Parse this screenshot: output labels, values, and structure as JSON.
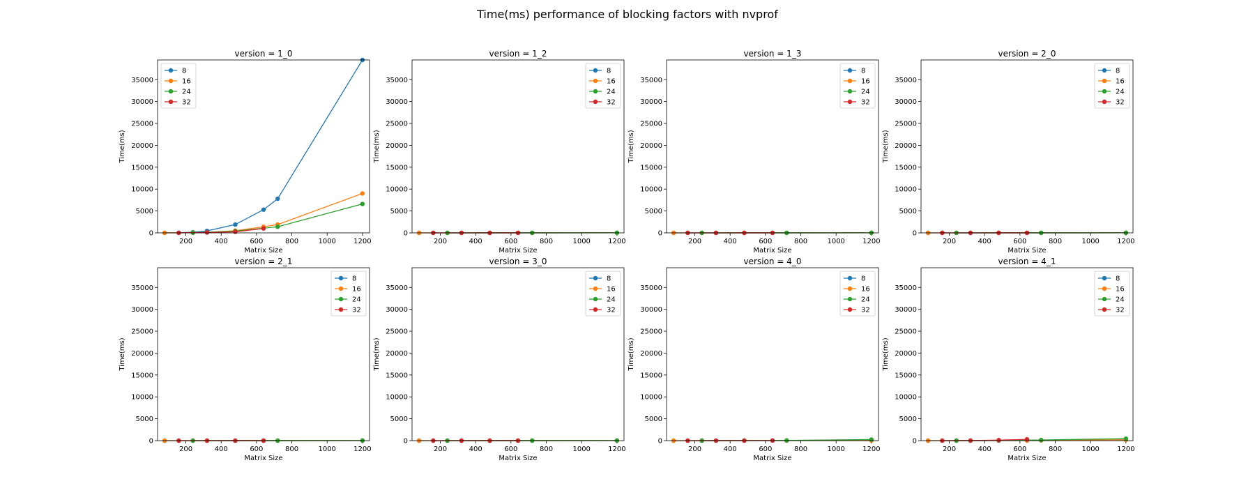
{
  "figure": {
    "title": "Time(ms) performance of blocking factors with nvprof"
  },
  "colors": {
    "8": "#1f77b4",
    "16": "#ff7f0e",
    "24": "#2ca02c",
    "32": "#d62728"
  },
  "chart_data": [
    {
      "type": "line",
      "title": "version = 1_0",
      "xlabel": "Matrix Size",
      "ylabel": "Time(ms)",
      "xlim": [
        40,
        1240
      ],
      "ylim": [
        0,
        39500
      ],
      "legend": "top-left",
      "xticks": [
        200,
        400,
        600,
        800,
        1000,
        1200
      ],
      "yticks": [
        0,
        5000,
        10000,
        15000,
        20000,
        25000,
        30000,
        35000
      ],
      "series": [
        {
          "name": "8",
          "x": [
            80,
            160,
            240,
            320,
            480,
            640,
            720,
            1200
          ],
          "y": [
            10,
            40,
            150,
            450,
            1900,
            5300,
            7800,
            39500
          ]
        },
        {
          "name": "16",
          "x": [
            80,
            160,
            240,
            320,
            480,
            640,
            720,
            1200
          ],
          "y": [
            5,
            15,
            50,
            120,
            500,
            1400,
            1900,
            9000
          ]
        },
        {
          "name": "24",
          "x": [
            240,
            480,
            720,
            1200
          ],
          "y": [
            30,
            400,
            1400,
            6600
          ]
        },
        {
          "name": "32",
          "x": [
            160,
            320,
            480,
            640
          ],
          "y": [
            10,
            80,
            250,
            1000
          ]
        }
      ]
    },
    {
      "type": "line",
      "title": "version = 1_2",
      "xlabel": "Matrix Size",
      "ylabel": "Time(ms)",
      "xlim": [
        40,
        1240
      ],
      "ylim": [
        0,
        39500
      ],
      "legend": "top-right",
      "xticks": [
        200,
        400,
        600,
        800,
        1000,
        1200
      ],
      "yticks": [
        0,
        5000,
        10000,
        15000,
        20000,
        25000,
        30000,
        35000
      ],
      "series": [
        {
          "name": "8",
          "x": [
            80,
            160,
            240,
            320,
            480,
            640,
            720,
            1200
          ],
          "y": [
            1,
            2,
            3,
            4,
            6,
            8,
            10,
            20
          ]
        },
        {
          "name": "16",
          "x": [
            80,
            160,
            240,
            320,
            480,
            640,
            720,
            1200
          ],
          "y": [
            1,
            2,
            3,
            4,
            6,
            8,
            10,
            20
          ]
        },
        {
          "name": "24",
          "x": [
            240,
            480,
            720,
            1200
          ],
          "y": [
            3,
            6,
            10,
            25
          ]
        },
        {
          "name": "32",
          "x": [
            160,
            320,
            480,
            640
          ],
          "y": [
            2,
            4,
            6,
            8
          ]
        }
      ]
    },
    {
      "type": "line",
      "title": "version = 1_3",
      "xlabel": "Matrix Size",
      "ylabel": "Time(ms)",
      "xlim": [
        40,
        1240
      ],
      "ylim": [
        0,
        39500
      ],
      "legend": "top-right",
      "xticks": [
        200,
        400,
        600,
        800,
        1000,
        1200
      ],
      "yticks": [
        0,
        5000,
        10000,
        15000,
        20000,
        25000,
        30000,
        35000
      ],
      "series": [
        {
          "name": "8",
          "x": [
            80,
            160,
            240,
            320,
            480,
            640,
            720,
            1200
          ],
          "y": [
            1,
            2,
            3,
            4,
            6,
            8,
            10,
            20
          ]
        },
        {
          "name": "16",
          "x": [
            80,
            160,
            240,
            320,
            480,
            640,
            720,
            1200
          ],
          "y": [
            1,
            2,
            3,
            4,
            6,
            8,
            10,
            20
          ]
        },
        {
          "name": "24",
          "x": [
            240,
            480,
            720,
            1200
          ],
          "y": [
            3,
            6,
            10,
            25
          ]
        },
        {
          "name": "32",
          "x": [
            160,
            320,
            480,
            640
          ],
          "y": [
            2,
            4,
            6,
            8
          ]
        }
      ]
    },
    {
      "type": "line",
      "title": "version = 2_0",
      "xlabel": "Matrix Size",
      "ylabel": "Time(ms)",
      "xlim": [
        40,
        1240
      ],
      "ylim": [
        0,
        39500
      ],
      "legend": "top-right",
      "xticks": [
        200,
        400,
        600,
        800,
        1000,
        1200
      ],
      "yticks": [
        0,
        5000,
        10000,
        15000,
        20000,
        25000,
        30000,
        35000
      ],
      "series": [
        {
          "name": "8",
          "x": [
            80,
            160,
            240,
            320,
            480,
            640,
            720,
            1200
          ],
          "y": [
            1,
            2,
            3,
            4,
            6,
            8,
            10,
            20
          ]
        },
        {
          "name": "16",
          "x": [
            80,
            160,
            240,
            320,
            480,
            640,
            720,
            1200
          ],
          "y": [
            1,
            2,
            3,
            4,
            6,
            8,
            10,
            20
          ]
        },
        {
          "name": "24",
          "x": [
            240,
            480,
            720,
            1200
          ],
          "y": [
            3,
            6,
            10,
            25
          ]
        },
        {
          "name": "32",
          "x": [
            160,
            320,
            480,
            640
          ],
          "y": [
            2,
            4,
            6,
            8
          ]
        }
      ]
    },
    {
      "type": "line",
      "title": "version = 2_1",
      "xlabel": "Matrix Size",
      "ylabel": "Time(ms)",
      "xlim": [
        40,
        1240
      ],
      "ylim": [
        0,
        39500
      ],
      "legend": "top-right",
      "xticks": [
        200,
        400,
        600,
        800,
        1000,
        1200
      ],
      "yticks": [
        0,
        5000,
        10000,
        15000,
        20000,
        25000,
        30000,
        35000
      ],
      "series": [
        {
          "name": "8",
          "x": [
            80,
            160,
            240,
            320,
            480,
            640,
            720,
            1200
          ],
          "y": [
            1,
            2,
            3,
            4,
            6,
            8,
            10,
            20
          ]
        },
        {
          "name": "16",
          "x": [
            80,
            160,
            240,
            320,
            480,
            640,
            720,
            1200
          ],
          "y": [
            1,
            2,
            3,
            4,
            6,
            8,
            10,
            20
          ]
        },
        {
          "name": "24",
          "x": [
            240,
            480,
            720,
            1200
          ],
          "y": [
            3,
            6,
            10,
            25
          ]
        },
        {
          "name": "32",
          "x": [
            160,
            320,
            480,
            640
          ],
          "y": [
            2,
            4,
            6,
            8
          ]
        }
      ]
    },
    {
      "type": "line",
      "title": "version = 3_0",
      "xlabel": "Matrix Size",
      "ylabel": "Time(ms)",
      "xlim": [
        40,
        1240
      ],
      "ylim": [
        0,
        39500
      ],
      "legend": "top-right",
      "xticks": [
        200,
        400,
        600,
        800,
        1000,
        1200
      ],
      "yticks": [
        0,
        5000,
        10000,
        15000,
        20000,
        25000,
        30000,
        35000
      ],
      "series": [
        {
          "name": "8",
          "x": [
            80,
            160,
            240,
            320,
            480,
            640,
            720,
            1200
          ],
          "y": [
            1,
            2,
            3,
            4,
            6,
            8,
            10,
            20
          ]
        },
        {
          "name": "16",
          "x": [
            80,
            160,
            240,
            320,
            480,
            640,
            720,
            1200
          ],
          "y": [
            1,
            2,
            3,
            4,
            6,
            8,
            10,
            20
          ]
        },
        {
          "name": "24",
          "x": [
            240,
            480,
            720,
            1200
          ],
          "y": [
            3,
            6,
            10,
            25
          ]
        },
        {
          "name": "32",
          "x": [
            160,
            320,
            480,
            640
          ],
          "y": [
            2,
            4,
            6,
            8
          ]
        }
      ]
    },
    {
      "type": "line",
      "title": "version = 4_0",
      "xlabel": "Matrix Size",
      "ylabel": "Time(ms)",
      "xlim": [
        40,
        1240
      ],
      "ylim": [
        0,
        39500
      ],
      "legend": "top-right",
      "xticks": [
        200,
        400,
        600,
        800,
        1000,
        1200
      ],
      "yticks": [
        0,
        5000,
        10000,
        15000,
        20000,
        25000,
        30000,
        35000
      ],
      "series": [
        {
          "name": "8",
          "x": [
            80,
            160,
            240,
            320,
            480,
            640,
            720,
            1200
          ],
          "y": [
            1,
            2,
            4,
            6,
            10,
            15,
            20,
            40
          ]
        },
        {
          "name": "16",
          "x": [
            80,
            160,
            240,
            320,
            480,
            640,
            720,
            1200
          ],
          "y": [
            1,
            2,
            4,
            6,
            10,
            15,
            20,
            40
          ]
        },
        {
          "name": "24",
          "x": [
            240,
            480,
            720,
            1200
          ],
          "y": [
            5,
            20,
            60,
            250
          ]
        },
        {
          "name": "32",
          "x": [
            160,
            320,
            480,
            640
          ],
          "y": [
            2,
            6,
            15,
            40
          ]
        }
      ]
    },
    {
      "type": "line",
      "title": "version = 4_1",
      "xlabel": "Matrix Size",
      "ylabel": "Time(ms)",
      "xlim": [
        40,
        1240
      ],
      "ylim": [
        0,
        39500
      ],
      "legend": "top-right",
      "xticks": [
        200,
        400,
        600,
        800,
        1000,
        1200
      ],
      "yticks": [
        0,
        5000,
        10000,
        15000,
        20000,
        25000,
        30000,
        35000
      ],
      "series": [
        {
          "name": "8",
          "x": [
            80,
            160,
            240,
            320,
            480,
            640,
            720,
            1200
          ],
          "y": [
            1,
            3,
            6,
            10,
            20,
            40,
            60,
            200
          ]
        },
        {
          "name": "16",
          "x": [
            80,
            160,
            240,
            320,
            480,
            640,
            720,
            1200
          ],
          "y": [
            1,
            3,
            6,
            10,
            20,
            40,
            60,
            200
          ]
        },
        {
          "name": "24",
          "x": [
            240,
            480,
            720,
            1200
          ],
          "y": [
            10,
            50,
            150,
            450
          ]
        },
        {
          "name": "32",
          "x": [
            160,
            320,
            480,
            640
          ],
          "y": [
            5,
            30,
            120,
            300
          ]
        }
      ]
    }
  ]
}
